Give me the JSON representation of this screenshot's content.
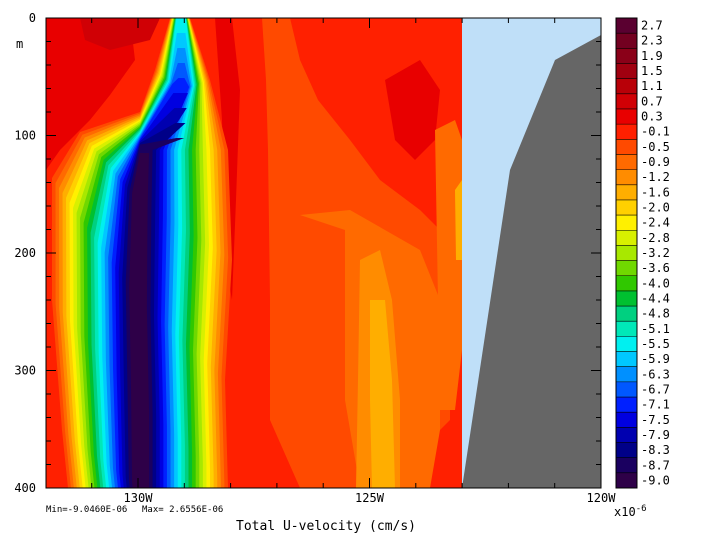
{
  "chart_data": {
    "type": "heatmap",
    "title": "",
    "xlabel": "Total U-velocity (cm/s)",
    "ylabel": "m",
    "x_axis": {
      "range": [
        -131,
        -121
      ],
      "ticks": [
        {
          "value": -130,
          "label": "130W"
        },
        {
          "value": -125,
          "label": "125W"
        },
        {
          "value": -120,
          "label": "120W"
        }
      ]
    },
    "y_axis": {
      "range": [
        0,
        400
      ],
      "inverted": true,
      "unit_label": "m",
      "ticks": [
        {
          "value": 0,
          "label": "0"
        },
        {
          "value": 100,
          "label": "100"
        },
        {
          "value": 200,
          "label": "200"
        },
        {
          "value": 300,
          "label": "300"
        },
        {
          "value": 400,
          "label": "400"
        }
      ]
    },
    "stats": {
      "min_label": "Min=-9.0460E-06",
      "max_label": "Max= 2.6556E-06",
      "min": -9.046e-06,
      "max": 2.6556e-06
    },
    "colorbar": {
      "exponent_label": "x10",
      "exponent_power": "-6",
      "levels": [
        "2.7",
        "2.3",
        "1.9",
        "1.5",
        "1.1",
        "0.7",
        "0.3",
        "-0.1",
        "-0.5",
        "-0.9",
        "-1.2",
        "-1.6",
        "-2.0",
        "-2.4",
        "-2.8",
        "-3.2",
        "-3.6",
        "-4.0",
        "-4.4",
        "-4.8",
        "-5.1",
        "-5.5",
        "-5.9",
        "-6.3",
        "-6.7",
        "-7.1",
        "-7.5",
        "-7.9",
        "-8.3",
        "-8.7",
        "-9.0"
      ],
      "colors": [
        "#5a0030",
        "#730020",
        "#8a0018",
        "#a00010",
        "#b80008",
        "#d00005",
        "#e80000",
        "#ff2000",
        "#ff4a00",
        "#ff6a00",
        "#ff8c00",
        "#ffae00",
        "#ffd000",
        "#fff000",
        "#d8f000",
        "#a8e800",
        "#70d800",
        "#30c800",
        "#00c030",
        "#00d080",
        "#00e8b8",
        "#00f0f0",
        "#00c8ff",
        "#0090ff",
        "#0058ff",
        "#0020ff",
        "#0000e0",
        "#0000b0",
        "#000088",
        "#1a0060",
        "#2e0048"
      ]
    },
    "fields": {
      "background_level": "-0.1",
      "land_color": "#666666",
      "ice_color": "#bfdff8"
    }
  }
}
